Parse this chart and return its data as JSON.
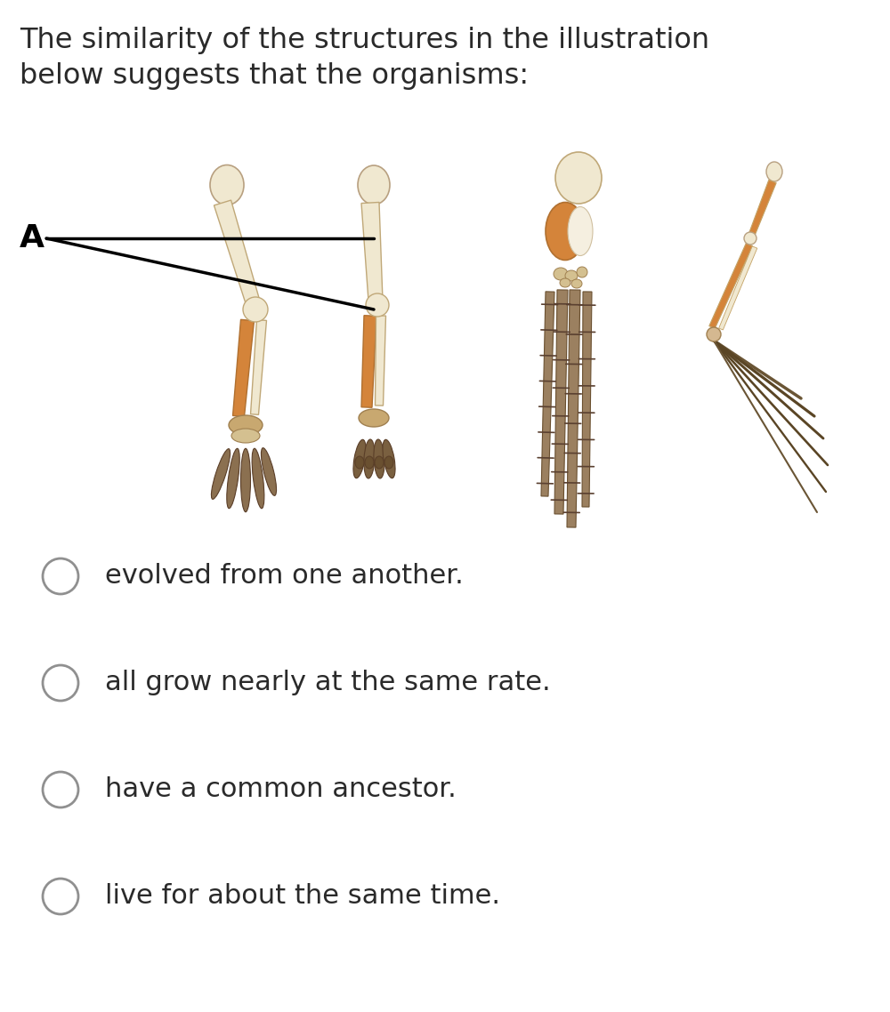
{
  "title_line1": "The similarity of the structures in the illustration",
  "title_line2": "below suggests that the organisms:",
  "options": [
    "evolved from one another.",
    "all grow nearly at the same rate.",
    "have a common ancestor.",
    "live for about the same time."
  ],
  "label_A": "A",
  "bg_color": "#ffffff",
  "text_color": "#2a2a2a",
  "title_fontsize": 23,
  "option_fontsize": 22,
  "bone_light": "#E8D8B0",
  "bone_orange": "#D4843A",
  "bone_cream": "#F0E8D0",
  "bone_tan": "#C8A870",
  "finger_brown": "#8B7050",
  "dark_brown": "#5A3E28",
  "gray_dark": "#555555",
  "gray_med": "#888888"
}
